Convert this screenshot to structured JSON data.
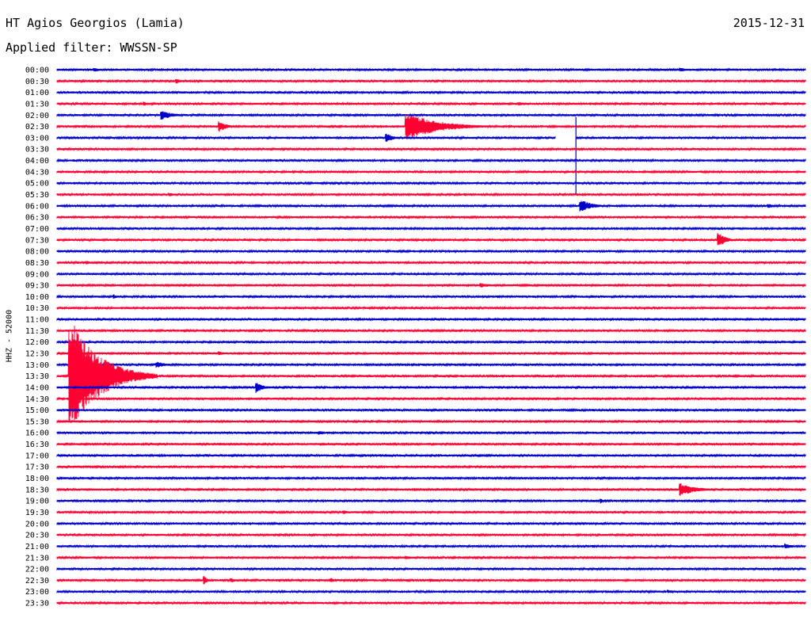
{
  "header": {
    "station": "HT Agios Georgios (Lamia)",
    "date": "2015-12-31",
    "filter": "Applied filter: WWSSN-SP"
  },
  "channel_label": "HHZ - 52000",
  "colors": {
    "blue": "#0000cc",
    "red": "#ff0033"
  },
  "chart_data": {
    "type": "line",
    "title": "",
    "xlabel": "",
    "ylabel": "",
    "rows": [
      "00:00",
      "00:30",
      "01:00",
      "01:30",
      "02:00",
      "02:30",
      "03:00",
      "03:30",
      "04:00",
      "04:30",
      "05:00",
      "05:30",
      "06:00",
      "06:30",
      "07:00",
      "07:30",
      "08:00",
      "08:30",
      "09:00",
      "09:30",
      "10:00",
      "10:30",
      "11:00",
      "11:30",
      "12:00",
      "12:30",
      "13:00",
      "13:30",
      "14:00",
      "14:30",
      "15:00",
      "15:30",
      "16:00",
      "16:30",
      "17:00",
      "17:30",
      "18:00",
      "18:30",
      "19:00",
      "19:30",
      "20:00",
      "20:30",
      "21:00",
      "21:30",
      "22:00",
      "22:30",
      "23:00",
      "23:30"
    ],
    "row_minutes": 30,
    "row_colors": [
      "blue",
      "red"
    ],
    "events": [
      {
        "row": "00:00",
        "minute": 1.5,
        "amp": 2.5,
        "dur": 1.5
      },
      {
        "row": "00:00",
        "minute": 25.0,
        "amp": 2.5,
        "dur": 1.2
      },
      {
        "row": "00:30",
        "minute": 4.8,
        "amp": 3,
        "dur": 0.8
      },
      {
        "row": "01:30",
        "minute": 3.5,
        "amp": 2.5,
        "dur": 1.0
      },
      {
        "row": "01:30",
        "minute": 18.5,
        "amp": 2.5,
        "dur": 1.5
      },
      {
        "row": "02:00",
        "minute": 4.2,
        "amp": 6,
        "dur": 1.5
      },
      {
        "row": "02:30",
        "minute": 6.5,
        "amp": 7,
        "dur": 1.0
      },
      {
        "row": "02:30",
        "minute": 14.0,
        "amp": 18,
        "dur": 4.0
      },
      {
        "row": "03:00",
        "minute": 13.2,
        "amp": 6,
        "dur": 1.0
      },
      {
        "row": "04:00",
        "minute": 5.8,
        "amp": 2,
        "dur": 0.5
      },
      {
        "row": "05:30",
        "minute": 4.5,
        "amp": 2.5,
        "dur": 1.0
      },
      {
        "row": "06:00",
        "minute": 21.0,
        "amp": 8,
        "dur": 1.5
      },
      {
        "row": "06:00",
        "minute": 28.5,
        "amp": 3,
        "dur": 1.0
      },
      {
        "row": "07:30",
        "minute": 26.5,
        "amp": 10,
        "dur": 1.0
      },
      {
        "row": "08:30",
        "minute": 1.2,
        "amp": 2.5,
        "dur": 0.6
      },
      {
        "row": "09:30",
        "minute": 17.0,
        "amp": 3,
        "dur": 1.5
      },
      {
        "row": "09:30",
        "minute": 24.5,
        "amp": 2.5,
        "dur": 0.8
      },
      {
        "row": "10:00",
        "minute": 2.3,
        "amp": 3,
        "dur": 0.3
      },
      {
        "row": "12:30",
        "minute": 6.5,
        "amp": 3,
        "dur": 0.8
      },
      {
        "row": "13:00",
        "minute": 4.0,
        "amp": 4,
        "dur": 1.5
      },
      {
        "row": "13:30",
        "minute": 0.5,
        "amp": 78,
        "dur": 3.5
      },
      {
        "row": "14:00",
        "minute": 8.0,
        "amp": 8,
        "dur": 0.8
      },
      {
        "row": "16:00",
        "minute": 10.5,
        "amp": 2.5,
        "dur": 1.2
      },
      {
        "row": "17:00",
        "minute": 6.0,
        "amp": 2,
        "dur": 0.6
      },
      {
        "row": "18:30",
        "minute": 25.0,
        "amp": 8,
        "dur": 2.0
      },
      {
        "row": "19:00",
        "minute": 21.8,
        "amp": 4,
        "dur": 0.3
      },
      {
        "row": "19:30",
        "minute": 11.5,
        "amp": 2.5,
        "dur": 1.0
      },
      {
        "row": "21:00",
        "minute": 29.2,
        "amp": 4,
        "dur": 0.8
      },
      {
        "row": "21:30",
        "minute": 14.0,
        "amp": 2.5,
        "dur": 1.0
      },
      {
        "row": "22:30",
        "minute": 5.9,
        "amp": 6,
        "dur": 0.4
      },
      {
        "row": "22:30",
        "minute": 7.0,
        "amp": 3,
        "dur": 0.6
      },
      {
        "row": "22:30",
        "minute": 11.0,
        "amp": 3,
        "dur": 0.5
      },
      {
        "row": "22:30",
        "minute": 15.0,
        "amp": 2.5,
        "dur": 0.6
      },
      {
        "row": "23:00",
        "minute": 24.5,
        "amp": 2.5,
        "dur": 1.0
      }
    ],
    "spikes": [
      {
        "row": "02:30",
        "minute": 20.8,
        "up": 12,
        "down": 86
      }
    ],
    "gaps": [
      {
        "row": "03:00",
        "start_minute": 20.0,
        "end_minute": 20.8
      }
    ]
  }
}
